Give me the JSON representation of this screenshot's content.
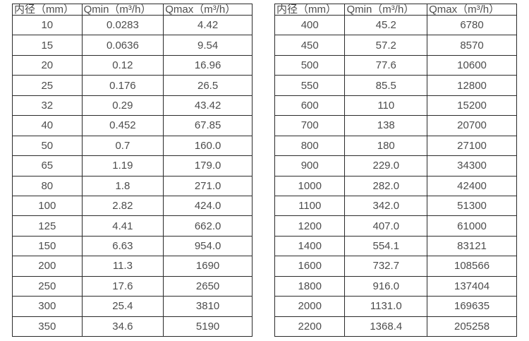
{
  "colors": {
    "background": "#ffffff",
    "border": "#2b2b2b",
    "text": "#4d4d4d"
  },
  "tables": [
    {
      "name": "flow-table-small-diameters",
      "headers": [
        "内径（mm）",
        "Qmin（m³/h）",
        "Qmax（m³/h）"
      ],
      "rows": [
        [
          "10",
          "0.0283",
          "4.42"
        ],
        [
          "15",
          "0.0636",
          "9.54"
        ],
        [
          "20",
          "0.12",
          "16.96"
        ],
        [
          "25",
          "0.176",
          "26.5"
        ],
        [
          "32",
          "0.29",
          "43.42"
        ],
        [
          "40",
          "0.452",
          "67.85"
        ],
        [
          "50",
          "0.7",
          "160.0"
        ],
        [
          "65",
          "1.19",
          "179.0"
        ],
        [
          "80",
          "1.8",
          "271.0"
        ],
        [
          "100",
          "2.82",
          "424.0"
        ],
        [
          "125",
          "4.41",
          "662.0"
        ],
        [
          "150",
          "6.63",
          "954.0"
        ],
        [
          "200",
          "11.3",
          "1690"
        ],
        [
          "250",
          "17.6",
          "2650"
        ],
        [
          "300",
          "25.4",
          "3810"
        ],
        [
          "350",
          "34.6",
          "5190"
        ]
      ]
    },
    {
      "name": "flow-table-large-diameters",
      "headers": [
        "内径（mm）",
        "Qmin（m³/h）",
        "Qmax（m³/h）"
      ],
      "rows": [
        [
          "400",
          "45.2",
          "6780"
        ],
        [
          "450",
          "57.2",
          "8570"
        ],
        [
          "500",
          "77.6",
          "10600"
        ],
        [
          "550",
          "85.5",
          "12800"
        ],
        [
          "600",
          "110",
          "15200"
        ],
        [
          "700",
          "138",
          "20700"
        ],
        [
          "800",
          "180",
          "27100"
        ],
        [
          "900",
          "229.0",
          "34300"
        ],
        [
          "1000",
          "282.0",
          "42400"
        ],
        [
          "1100",
          "342.0",
          "51300"
        ],
        [
          "1200",
          "407.0",
          "61000"
        ],
        [
          "1400",
          "554.1",
          "83121"
        ],
        [
          "1600",
          "732.7",
          "108566"
        ],
        [
          "1800",
          "916.0",
          "137404"
        ],
        [
          "2000",
          "1131.0",
          "169635"
        ],
        [
          "2200",
          "1368.4",
          "205258"
        ]
      ]
    }
  ],
  "chart_data": [
    {
      "type": "table",
      "title": "",
      "columns": [
        "内径（mm）",
        "Qmin（m³/h）",
        "Qmax（m³/h）"
      ],
      "x": [
        10,
        15,
        20,
        25,
        32,
        40,
        50,
        65,
        80,
        100,
        125,
        150,
        200,
        250,
        300,
        350
      ],
      "series": [
        {
          "name": "Qmin (m³/h)",
          "values": [
            0.0283,
            0.0636,
            0.12,
            0.176,
            0.29,
            0.452,
            0.7,
            1.19,
            1.8,
            2.82,
            4.41,
            6.63,
            11.3,
            17.6,
            25.4,
            34.6
          ]
        },
        {
          "name": "Qmax (m³/h)",
          "values": [
            4.42,
            9.54,
            16.96,
            26.5,
            43.42,
            67.85,
            160.0,
            179.0,
            271.0,
            424.0,
            662.0,
            954.0,
            1690,
            2650,
            3810,
            5190
          ]
        }
      ]
    },
    {
      "type": "table",
      "title": "",
      "columns": [
        "内径（mm）",
        "Qmin（m³/h）",
        "Qmax（m³/h）"
      ],
      "x": [
        400,
        450,
        500,
        550,
        600,
        700,
        800,
        900,
        1000,
        1100,
        1200,
        1400,
        1600,
        1800,
        2000,
        2200
      ],
      "series": [
        {
          "name": "Qmin (m³/h)",
          "values": [
            45.2,
            57.2,
            77.6,
            85.5,
            110,
            138,
            180,
            229.0,
            282.0,
            342.0,
            407.0,
            554.1,
            732.7,
            916.0,
            1131.0,
            1368.4
          ]
        },
        {
          "name": "Qmax (m³/h)",
          "values": [
            6780,
            8570,
            10600,
            12800,
            15200,
            20700,
            27100,
            34300,
            42400,
            51300,
            61000,
            83121,
            108566,
            137404,
            169635,
            205258
          ]
        }
      ]
    }
  ]
}
